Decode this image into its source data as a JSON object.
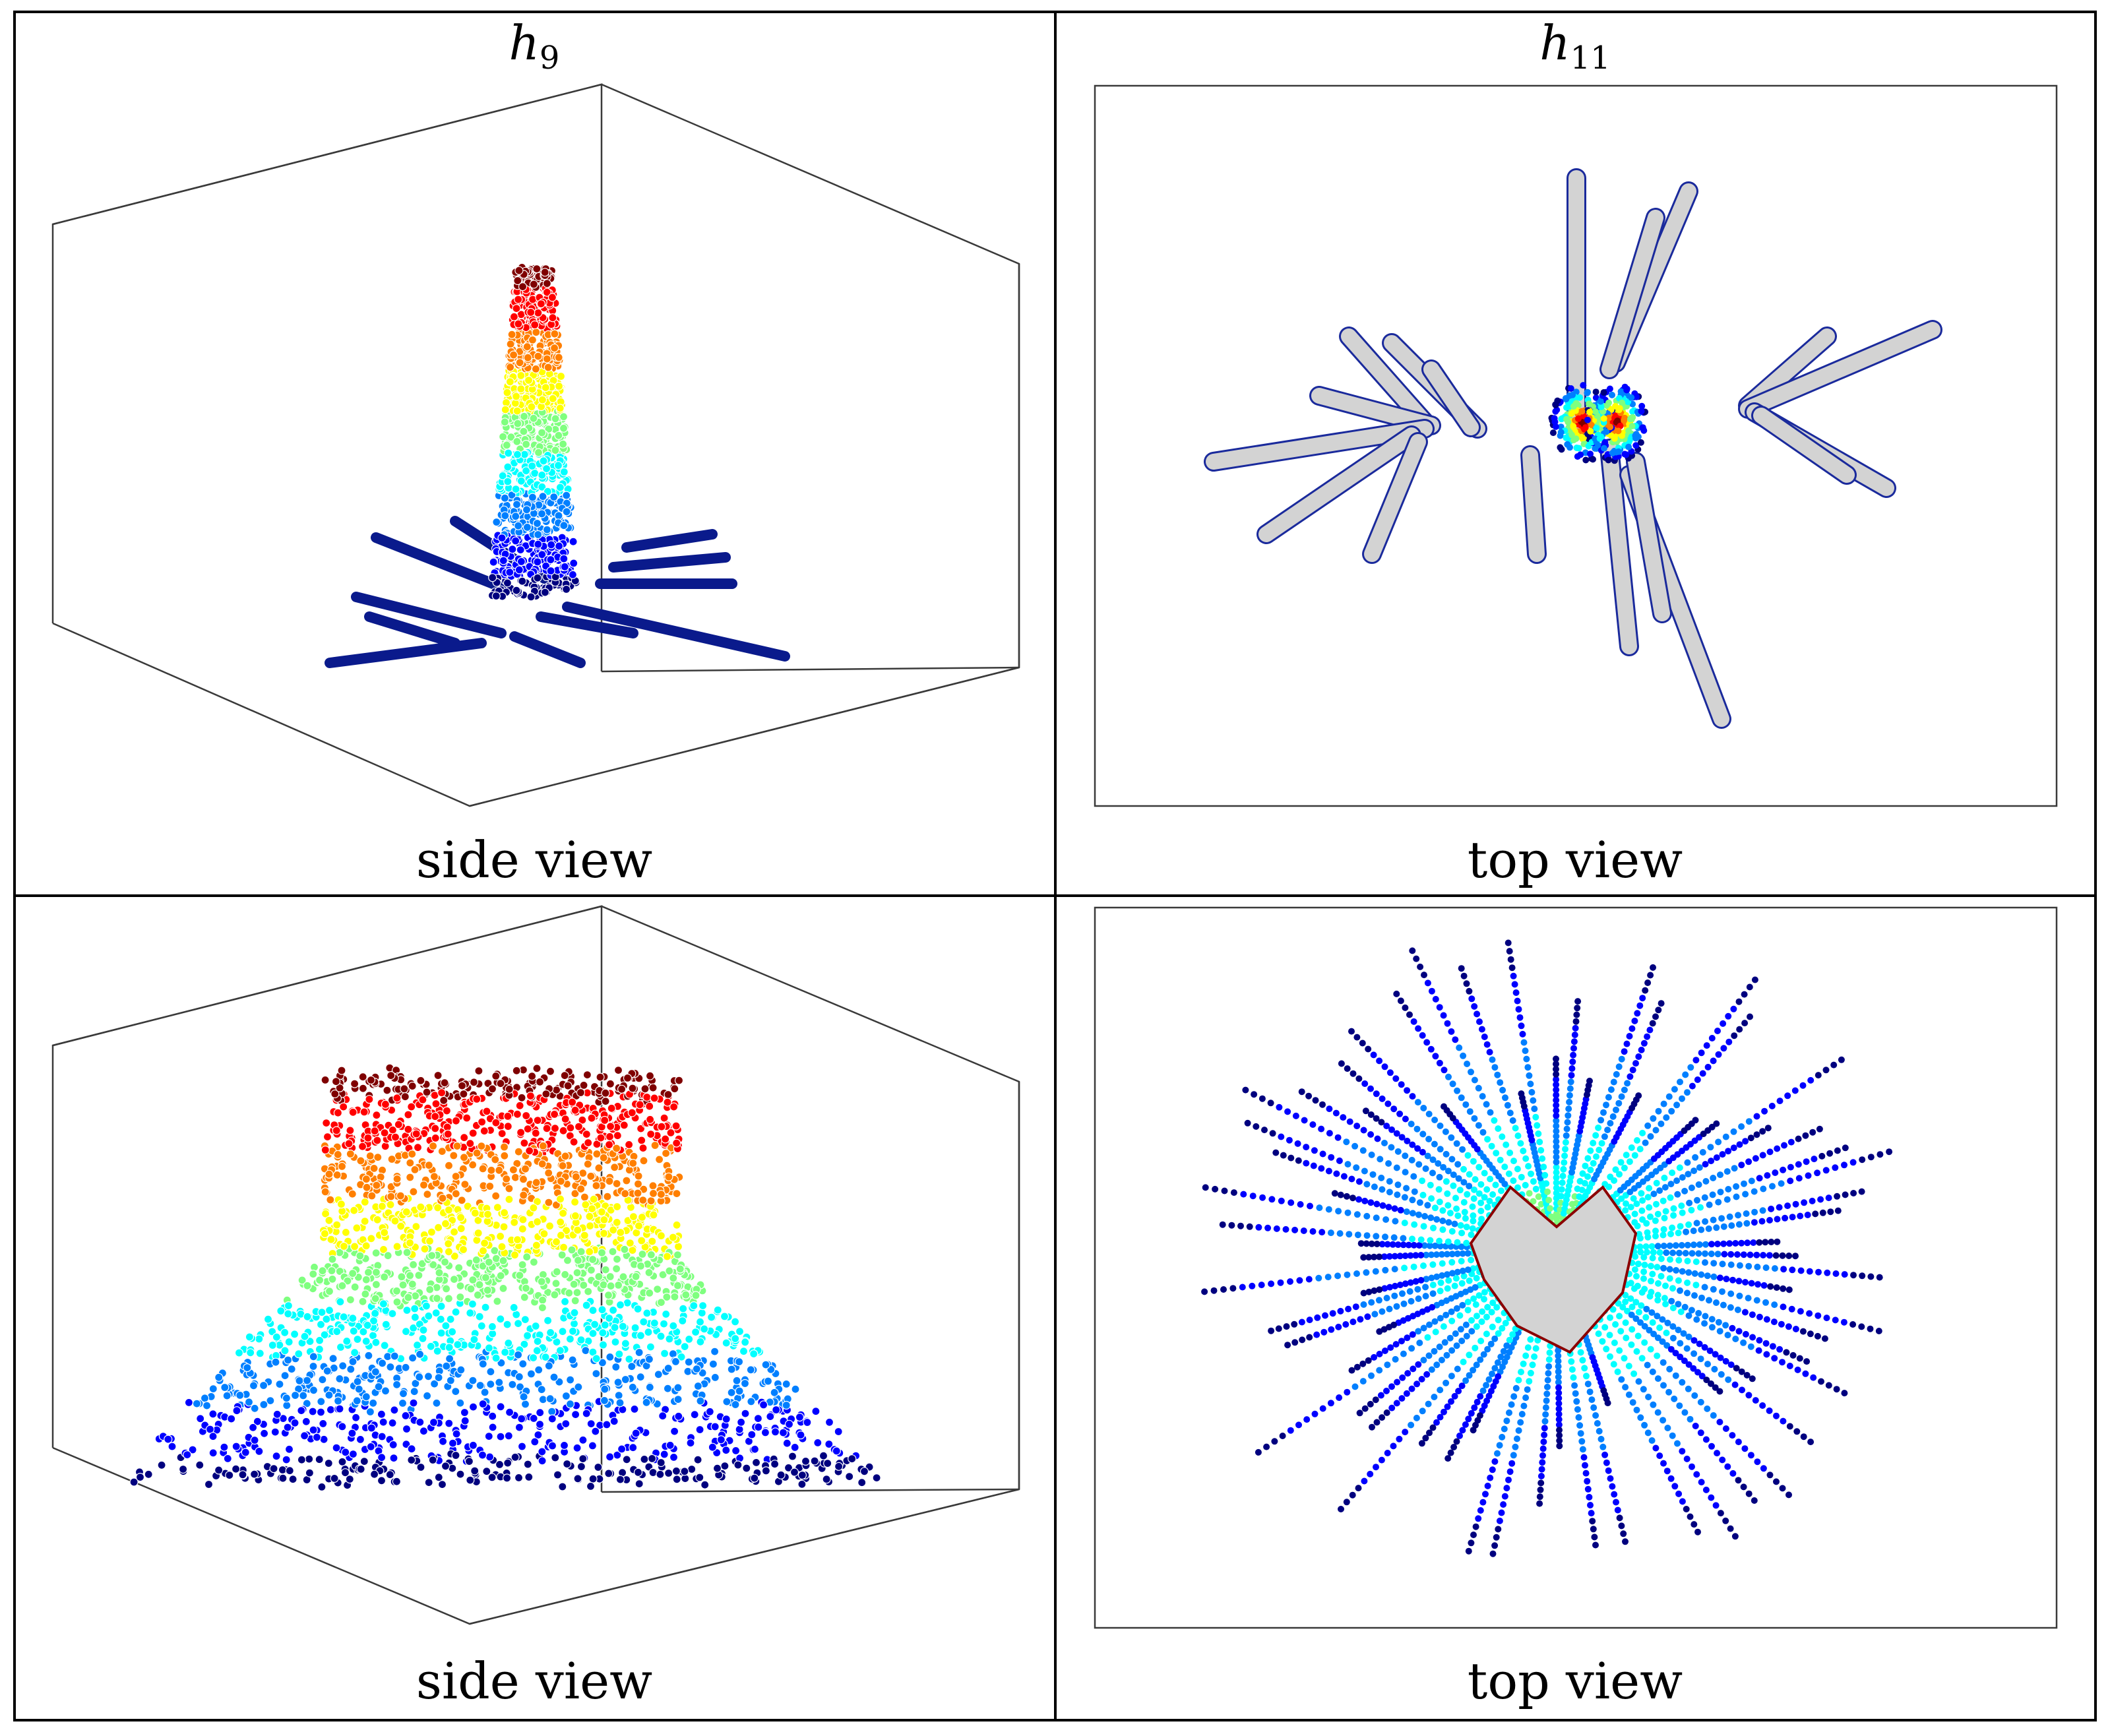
{
  "columns": [
    {
      "symbol": "h",
      "subscript": "9"
    },
    {
      "symbol": "h",
      "subscript": "11"
    }
  ],
  "panels": [
    {
      "id": "r1c1",
      "kind": "side",
      "caption": "side view"
    },
    {
      "id": "r1c2",
      "kind": "top",
      "caption": "top view"
    },
    {
      "id": "r2c1",
      "kind": "side",
      "caption": "side view"
    },
    {
      "id": "r2c2",
      "kind": "top",
      "caption": "top view"
    }
  ],
  "colors": {
    "jet": [
      "#00007f",
      "#0000ff",
      "#007fff",
      "#00ffff",
      "#7fff7f",
      "#ffff00",
      "#ff7f00",
      "#ff0000",
      "#7f0000"
    ],
    "region": "#d3d3d3",
    "frame": "#000000",
    "axes": "#3a3a3a"
  }
}
